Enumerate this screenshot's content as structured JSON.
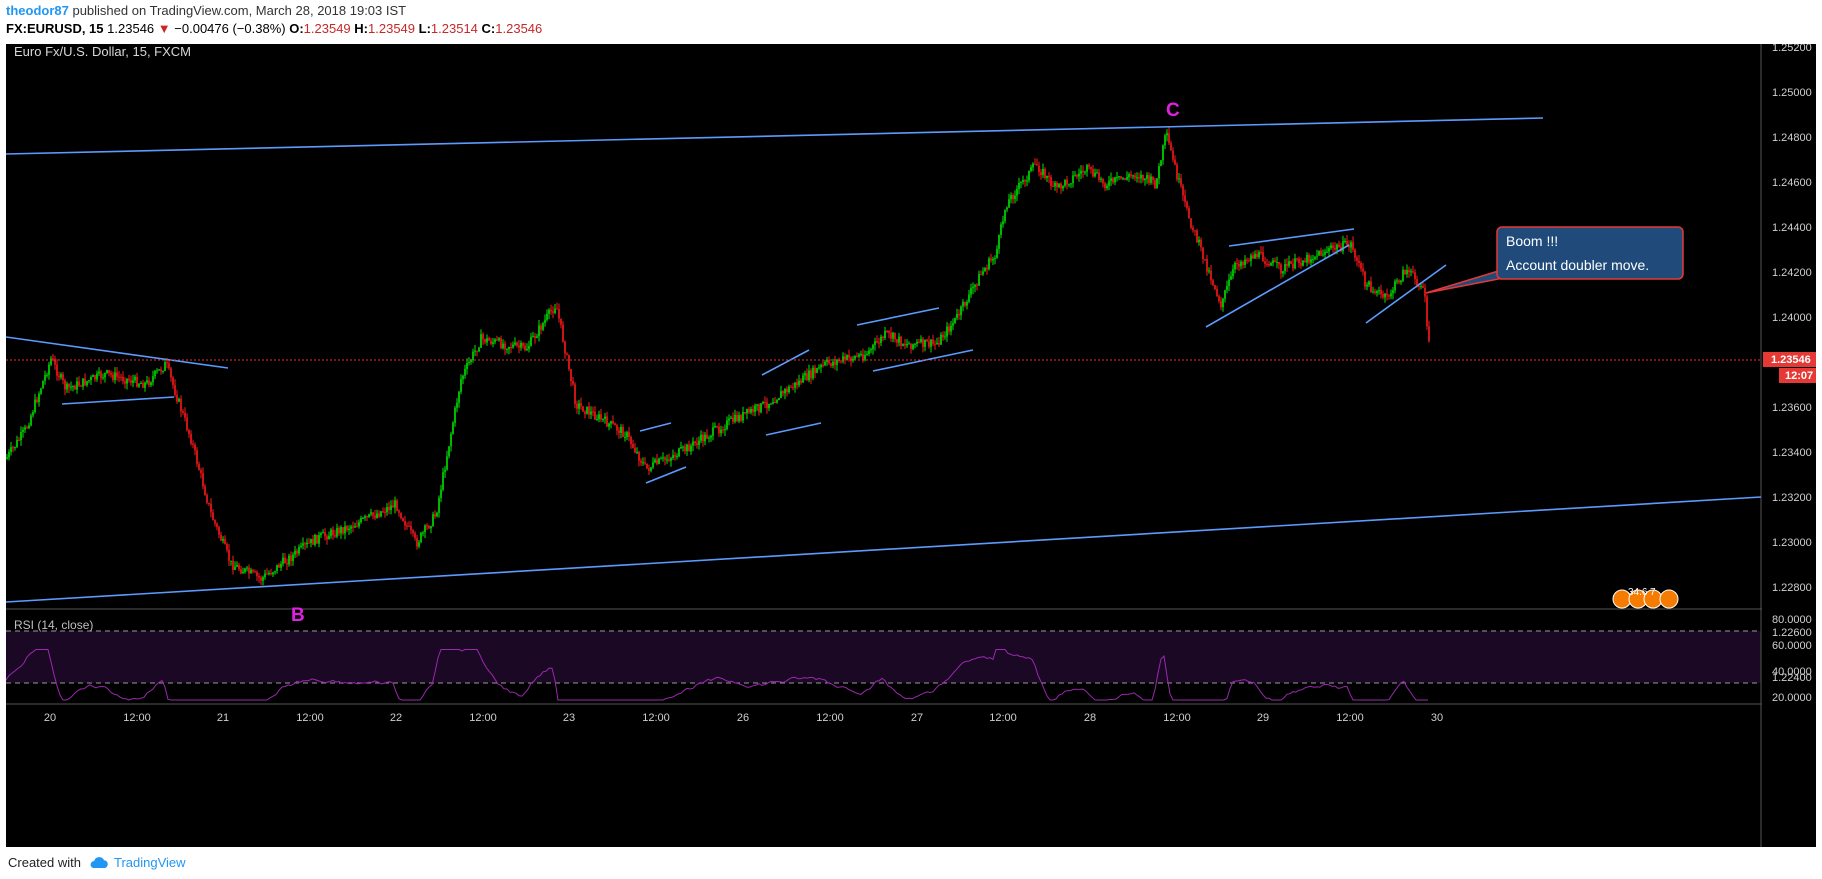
{
  "header": {
    "username": "theodor87",
    "published_text": "published on TradingView.com, March 28, 2018 19:03 IST",
    "symbol_prefix": "FX:EURUSD, 15",
    "last_price": "1.23546",
    "change_arrow": "▼",
    "change": "−0.00476 (−0.38%)",
    "ohlc": [
      {
        "k": "O:",
        "v": "1.23549"
      },
      {
        "k": "H:",
        "v": "1.23549"
      },
      {
        "k": "L:",
        "v": "1.23514"
      },
      {
        "k": "C:",
        "v": "1.23546"
      }
    ]
  },
  "chart": {
    "instrument_label": "Euro Fx/U.S. Dollar, 15, FXCM",
    "price_axis_ticks": [
      "1.25200",
      "1.25000",
      "1.24800",
      "1.24600",
      "1.24400",
      "1.24200",
      "1.24000",
      "1.23800",
      "1.23600",
      "1.23400",
      "1.23200",
      "1.23000",
      "1.22800",
      "1.22600",
      "1.22400"
    ],
    "current_price_tag": "1.23546",
    "countdown_tag": "12:07",
    "wave_label_c": "C",
    "wave_label_b": "B",
    "annotation_line1": "Boom !!!",
    "annotation_line2": "Account doubler move.",
    "event_badge": "34.6",
    "event_badge2": "7",
    "rsi_label": "RSI (14, close)",
    "rsi_axis_ticks": [
      "80.0000",
      "60.0000",
      "40.0000",
      "20.0000"
    ],
    "time_axis_ticks": [
      "20",
      "12:00",
      "21",
      "12:00",
      "22",
      "12:00",
      "23",
      "12:00",
      "26",
      "12:00",
      "27",
      "12:00",
      "28",
      "12:00",
      "29",
      "12:00",
      "30"
    ]
  },
  "footer": {
    "created_with": "Created with",
    "brand": "TradingView"
  },
  "colors": {
    "background": "#000000",
    "bull_candle": "#00e600",
    "bear_candle": "#ff1a1a",
    "trendline": "#5b9bff",
    "wave_label": "#e020e0",
    "rsi_line": "#9c27b0",
    "price_tag": "#e53935",
    "annotation_bg": "#1f4a7a"
  }
}
